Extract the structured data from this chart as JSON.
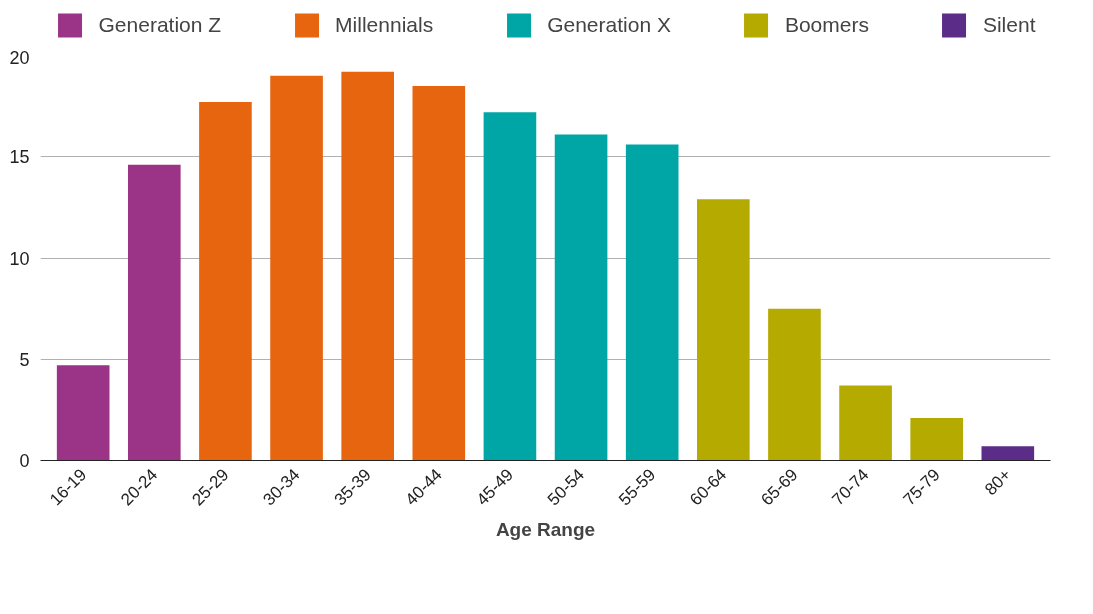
{
  "chart_data": {
    "type": "bar",
    "xlabel": "Age Range",
    "stacked": true,
    "categories": [
      "16-19",
      "20-24",
      "25-29",
      "30-34",
      "35-39",
      "40-44",
      "45-49",
      "50-54",
      "55-59",
      "60-64",
      "65-69",
      "70-74",
      "75-79",
      "80+"
    ],
    "series": [
      {
        "name": "Generation Z",
        "color": "#9b3386",
        "values": [
          4.7,
          14.6,
          null,
          null,
          null,
          null,
          null,
          null,
          null,
          null,
          null,
          null,
          null,
          null
        ]
      },
      {
        "name": "Millennials",
        "color": "#e86510",
        "values": [
          null,
          null,
          17.7,
          19.0,
          19.2,
          18.5,
          null,
          null,
          null,
          null,
          null,
          null,
          null,
          null
        ]
      },
      {
        "name": "Generation X",
        "color": "#00a6a6",
        "values": [
          null,
          null,
          null,
          null,
          null,
          null,
          17.2,
          16.1,
          15.6,
          null,
          null,
          null,
          null,
          null
        ]
      },
      {
        "name": "Boomers",
        "color": "#b5aa00",
        "values": [
          null,
          null,
          null,
          null,
          null,
          null,
          null,
          null,
          null,
          12.9,
          7.5,
          3.7,
          2.1,
          null
        ]
      },
      {
        "name": "Silent",
        "color": "#5c2d88",
        "values": [
          null,
          null,
          null,
          null,
          null,
          null,
          null,
          null,
          null,
          null,
          null,
          null,
          null,
          0.7
        ]
      }
    ],
    "ylim": [
      0,
      20
    ],
    "yticks": [
      0,
      5,
      10,
      15,
      20
    ],
    "grid": "y",
    "legend": "top"
  }
}
